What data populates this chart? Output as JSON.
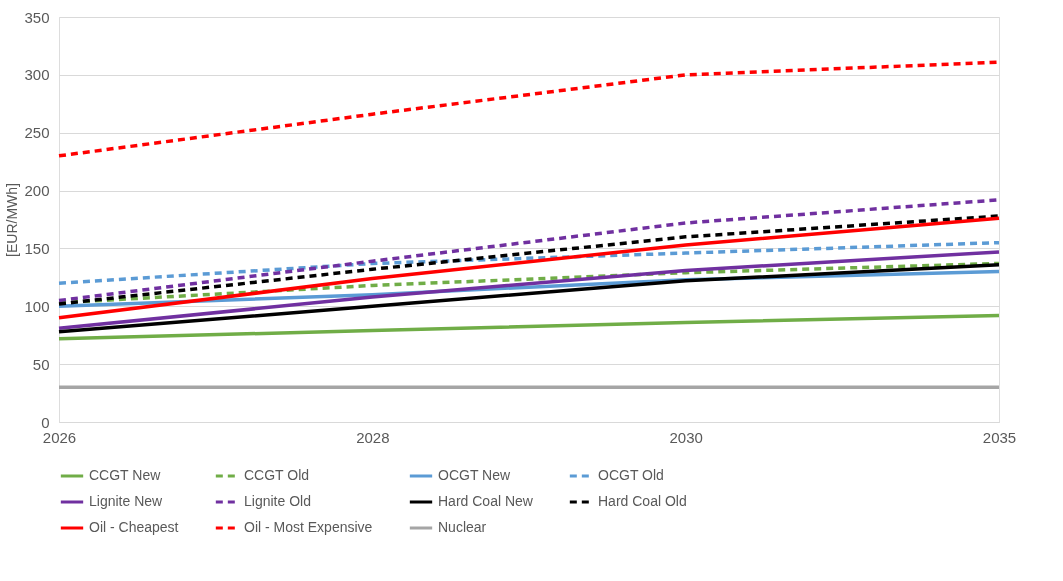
{
  "chart_data": {
    "type": "line",
    "ylabel": "[EUR/MWh]",
    "categories": [
      "2026",
      "2028",
      "2030",
      "2035"
    ],
    "ylim": [
      0,
      350
    ],
    "yticks": [
      0,
      50,
      100,
      150,
      200,
      250,
      300,
      350
    ],
    "grid": "y",
    "legend": "bottom",
    "marker": "none",
    "series": [
      {
        "name": "CCGT New",
        "color": "#70ad47",
        "line_style": "solid",
        "values": [
          72,
          79,
          86,
          92
        ]
      },
      {
        "name": "CCGT Old",
        "color": "#70ad47",
        "line_style": "dashed",
        "values": [
          103,
          118,
          129,
          137
        ]
      },
      {
        "name": "OCGT New",
        "color": "#5b9bd5",
        "line_style": "solid",
        "values": [
          100,
          110,
          123,
          130
        ]
      },
      {
        "name": "OCGT Old",
        "color": "#5b9bd5",
        "line_style": "dashed",
        "values": [
          120,
          137,
          146,
          155
        ]
      },
      {
        "name": "Lignite New",
        "color": "#7030a0",
        "line_style": "solid",
        "values": [
          81,
          108,
          131,
          147
        ]
      },
      {
        "name": "Lignite Old",
        "color": "#7030a0",
        "line_style": "dashed",
        "values": [
          105,
          139,
          172,
          192
        ]
      },
      {
        "name": "Hard Coal New",
        "color": "#000000",
        "line_style": "solid",
        "values": [
          78,
          100,
          122,
          136
        ]
      },
      {
        "name": "Hard Coal Old",
        "color": "#000000",
        "line_style": "dashed",
        "values": [
          102,
          132,
          160,
          178
        ]
      },
      {
        "name": "Oil - Cheapest",
        "color": "#ff0000",
        "line_style": "solid",
        "values": [
          90,
          124,
          153,
          176
        ]
      },
      {
        "name": "Oil - Most Expensive",
        "color": "#ff0000",
        "line_style": "dashed",
        "values": [
          230,
          266,
          300,
          311
        ]
      },
      {
        "name": "Nuclear",
        "color": "#a5a5a5",
        "line_style": "solid",
        "values": [
          30,
          30,
          30,
          30
        ]
      }
    ]
  }
}
